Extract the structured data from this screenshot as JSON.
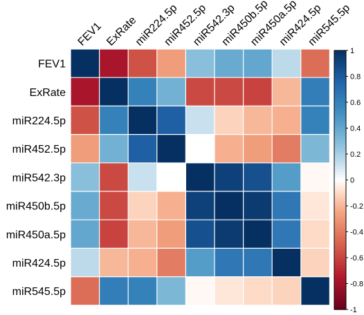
{
  "chart_data": {
    "type": "heatmap",
    "title": "",
    "row_labels": [
      "FEV1",
      "ExRate",
      "miR224.5p",
      "miR452.5p",
      "miR542.3p",
      "miR450b.5p",
      "miR450a.5p",
      "miR424.5p",
      "miR545.5p"
    ],
    "col_labels": [
      "FEV1",
      "ExRate",
      "miR224.5p",
      "miR452.5p",
      "miR542.3p",
      "miR450b.5p",
      "miR450a.5p",
      "miR424.5p",
      "miR545.5p"
    ],
    "values": [
      [
        1.0,
        -0.78,
        -0.55,
        -0.28,
        0.28,
        0.38,
        0.4,
        0.15,
        -0.45
      ],
      [
        -0.78,
        1.0,
        0.6,
        0.35,
        -0.58,
        -0.58,
        -0.6,
        -0.2,
        0.62
      ],
      [
        -0.55,
        0.6,
        1.0,
        0.78,
        0.12,
        -0.12,
        -0.2,
        -0.22,
        0.6
      ],
      [
        -0.28,
        0.35,
        0.78,
        1.0,
        0.0,
        -0.22,
        -0.28,
        -0.4,
        0.32
      ],
      [
        0.28,
        -0.58,
        0.12,
        0.0,
        1.0,
        0.92,
        0.85,
        0.45,
        -0.02
      ],
      [
        0.38,
        -0.58,
        -0.12,
        -0.22,
        0.92,
        1.0,
        0.95,
        0.65,
        -0.07
      ],
      [
        0.4,
        -0.6,
        -0.2,
        -0.28,
        0.85,
        0.95,
        1.0,
        0.65,
        -0.1
      ],
      [
        0.15,
        -0.2,
        -0.22,
        -0.4,
        0.45,
        0.65,
        0.65,
        1.0,
        -0.12
      ],
      [
        -0.45,
        0.62,
        0.6,
        0.32,
        -0.02,
        -0.07,
        -0.1,
        -0.12,
        1.0
      ]
    ],
    "colorbar": {
      "ticks": [
        "1",
        "0.8",
        "0.6",
        "0.4",
        "0.2",
        "0",
        "-0.2",
        "-0.4",
        "-0.6",
        "-0.8",
        "-1"
      ],
      "range": [
        -1,
        1
      ],
      "colors": {
        "low": "#67001f",
        "mid": "#ffffff",
        "high": "#053061"
      }
    }
  }
}
